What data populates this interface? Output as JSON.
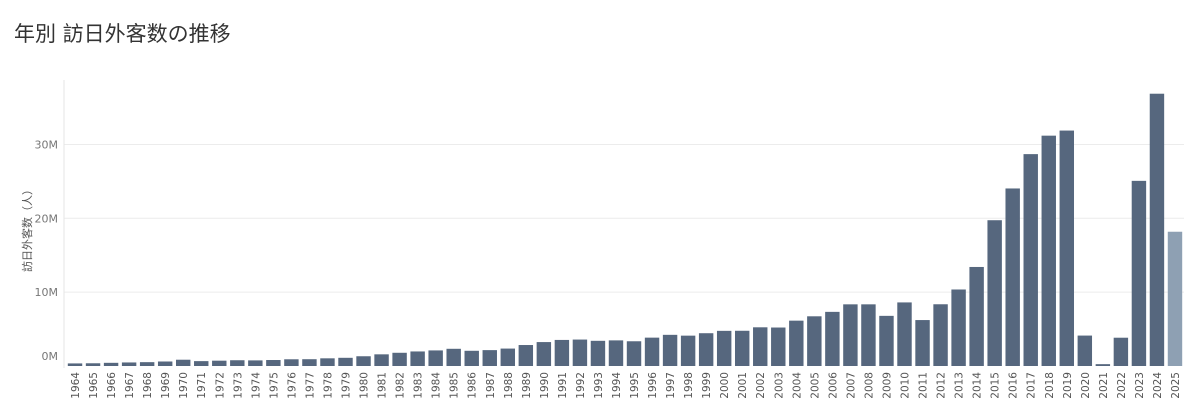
{
  "chart_data": {
    "type": "bar",
    "title": "年別 訪日外客数の推移",
    "xlabel": "",
    "ylabel": "訪日外客数（人）",
    "ylim": [
      0,
      38
    ],
    "yticks": [
      {
        "value": 0,
        "label": "0M"
      },
      {
        "value": 10,
        "label": "10M"
      },
      {
        "value": 20,
        "label": "20M"
      },
      {
        "value": 30,
        "label": "30M"
      }
    ],
    "grid": true,
    "bar_color": "#56677e",
    "highlight_color": "#8ea0b3",
    "categories": [
      "1964",
      "1965",
      "1966",
      "1967",
      "1968",
      "1969",
      "1970",
      "1971",
      "1972",
      "1973",
      "1974",
      "1975",
      "1976",
      "1977",
      "1978",
      "1979",
      "1980",
      "1981",
      "1982",
      "1983",
      "1984",
      "1985",
      "1986",
      "1987",
      "1988",
      "1989",
      "1990",
      "1991",
      "1992",
      "1993",
      "1994",
      "1995",
      "1996",
      "1997",
      "1998",
      "1999",
      "2000",
      "2001",
      "2002",
      "2003",
      "2004",
      "2005",
      "2006",
      "2007",
      "2008",
      "2009",
      "2010",
      "2011",
      "2012",
      "2013",
      "2014",
      "2015",
      "2016",
      "2017",
      "2018",
      "2019",
      "2020",
      "2021",
      "2022",
      "2023",
      "2024",
      "2025"
    ],
    "values": [
      0.35,
      0.37,
      0.43,
      0.48,
      0.52,
      0.61,
      0.85,
      0.66,
      0.72,
      0.78,
      0.76,
      0.81,
      0.91,
      0.92,
      1.04,
      1.11,
      1.32,
      1.58,
      1.79,
      1.97,
      2.11,
      2.33,
      2.06,
      2.15,
      2.36,
      2.84,
      3.24,
      3.53,
      3.58,
      3.41,
      3.47,
      3.35,
      3.84,
      4.22,
      4.11,
      4.44,
      4.76,
      4.77,
      5.24,
      5.21,
      6.14,
      6.73,
      7.33,
      8.35,
      8.35,
      6.79,
      8.61,
      6.22,
      8.36,
      10.36,
      13.41,
      19.74,
      24.04,
      28.69,
      31.19,
      31.88,
      4.12,
      0.25,
      3.83,
      25.07,
      36.87,
      18.18
    ],
    "highlight_index": 61
  }
}
